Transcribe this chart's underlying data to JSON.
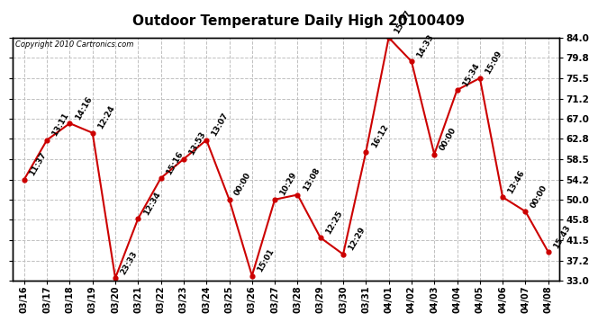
{
  "title": "Outdoor Temperature Daily High 20100409",
  "copyright": "Copyright 2010 Cartronics.com",
  "dates": [
    "03/16",
    "03/17",
    "03/18",
    "03/19",
    "03/20",
    "03/21",
    "03/22",
    "03/23",
    "03/24",
    "03/25",
    "03/26",
    "03/27",
    "03/28",
    "03/29",
    "03/30",
    "03/31",
    "04/01",
    "04/02",
    "04/03",
    "04/04",
    "04/05",
    "04/06",
    "04/07",
    "04/08"
  ],
  "temps": [
    54.2,
    62.5,
    66.0,
    64.0,
    33.5,
    46.0,
    54.5,
    58.5,
    62.5,
    50.0,
    34.0,
    50.0,
    51.0,
    42.0,
    38.5,
    60.0,
    84.0,
    79.0,
    59.5,
    73.0,
    75.5,
    50.5,
    47.5,
    39.0
  ],
  "labels": [
    "11:37",
    "13:11",
    "14:16",
    "12:24",
    "23:33",
    "12:34",
    "15:16",
    "13:53",
    "13:07",
    "00:00",
    "15:01",
    "10:29",
    "13:08",
    "12:25",
    "12:29",
    "16:12",
    "15:27",
    "14:33",
    "00:00",
    "15:34",
    "15:09",
    "13:46",
    "00:00",
    "15:43"
  ],
  "yticks": [
    33.0,
    37.2,
    41.5,
    45.8,
    50.0,
    54.2,
    58.5,
    62.8,
    67.0,
    71.2,
    75.5,
    79.8,
    84.0
  ],
  "line_color": "#cc0000",
  "marker_color": "#cc0000",
  "background_color": "#ffffff",
  "grid_color": "#c0c0c0",
  "title_fontsize": 11,
  "label_fontsize": 6.5,
  "xtick_fontsize": 7,
  "ytick_fontsize": 7.5
}
